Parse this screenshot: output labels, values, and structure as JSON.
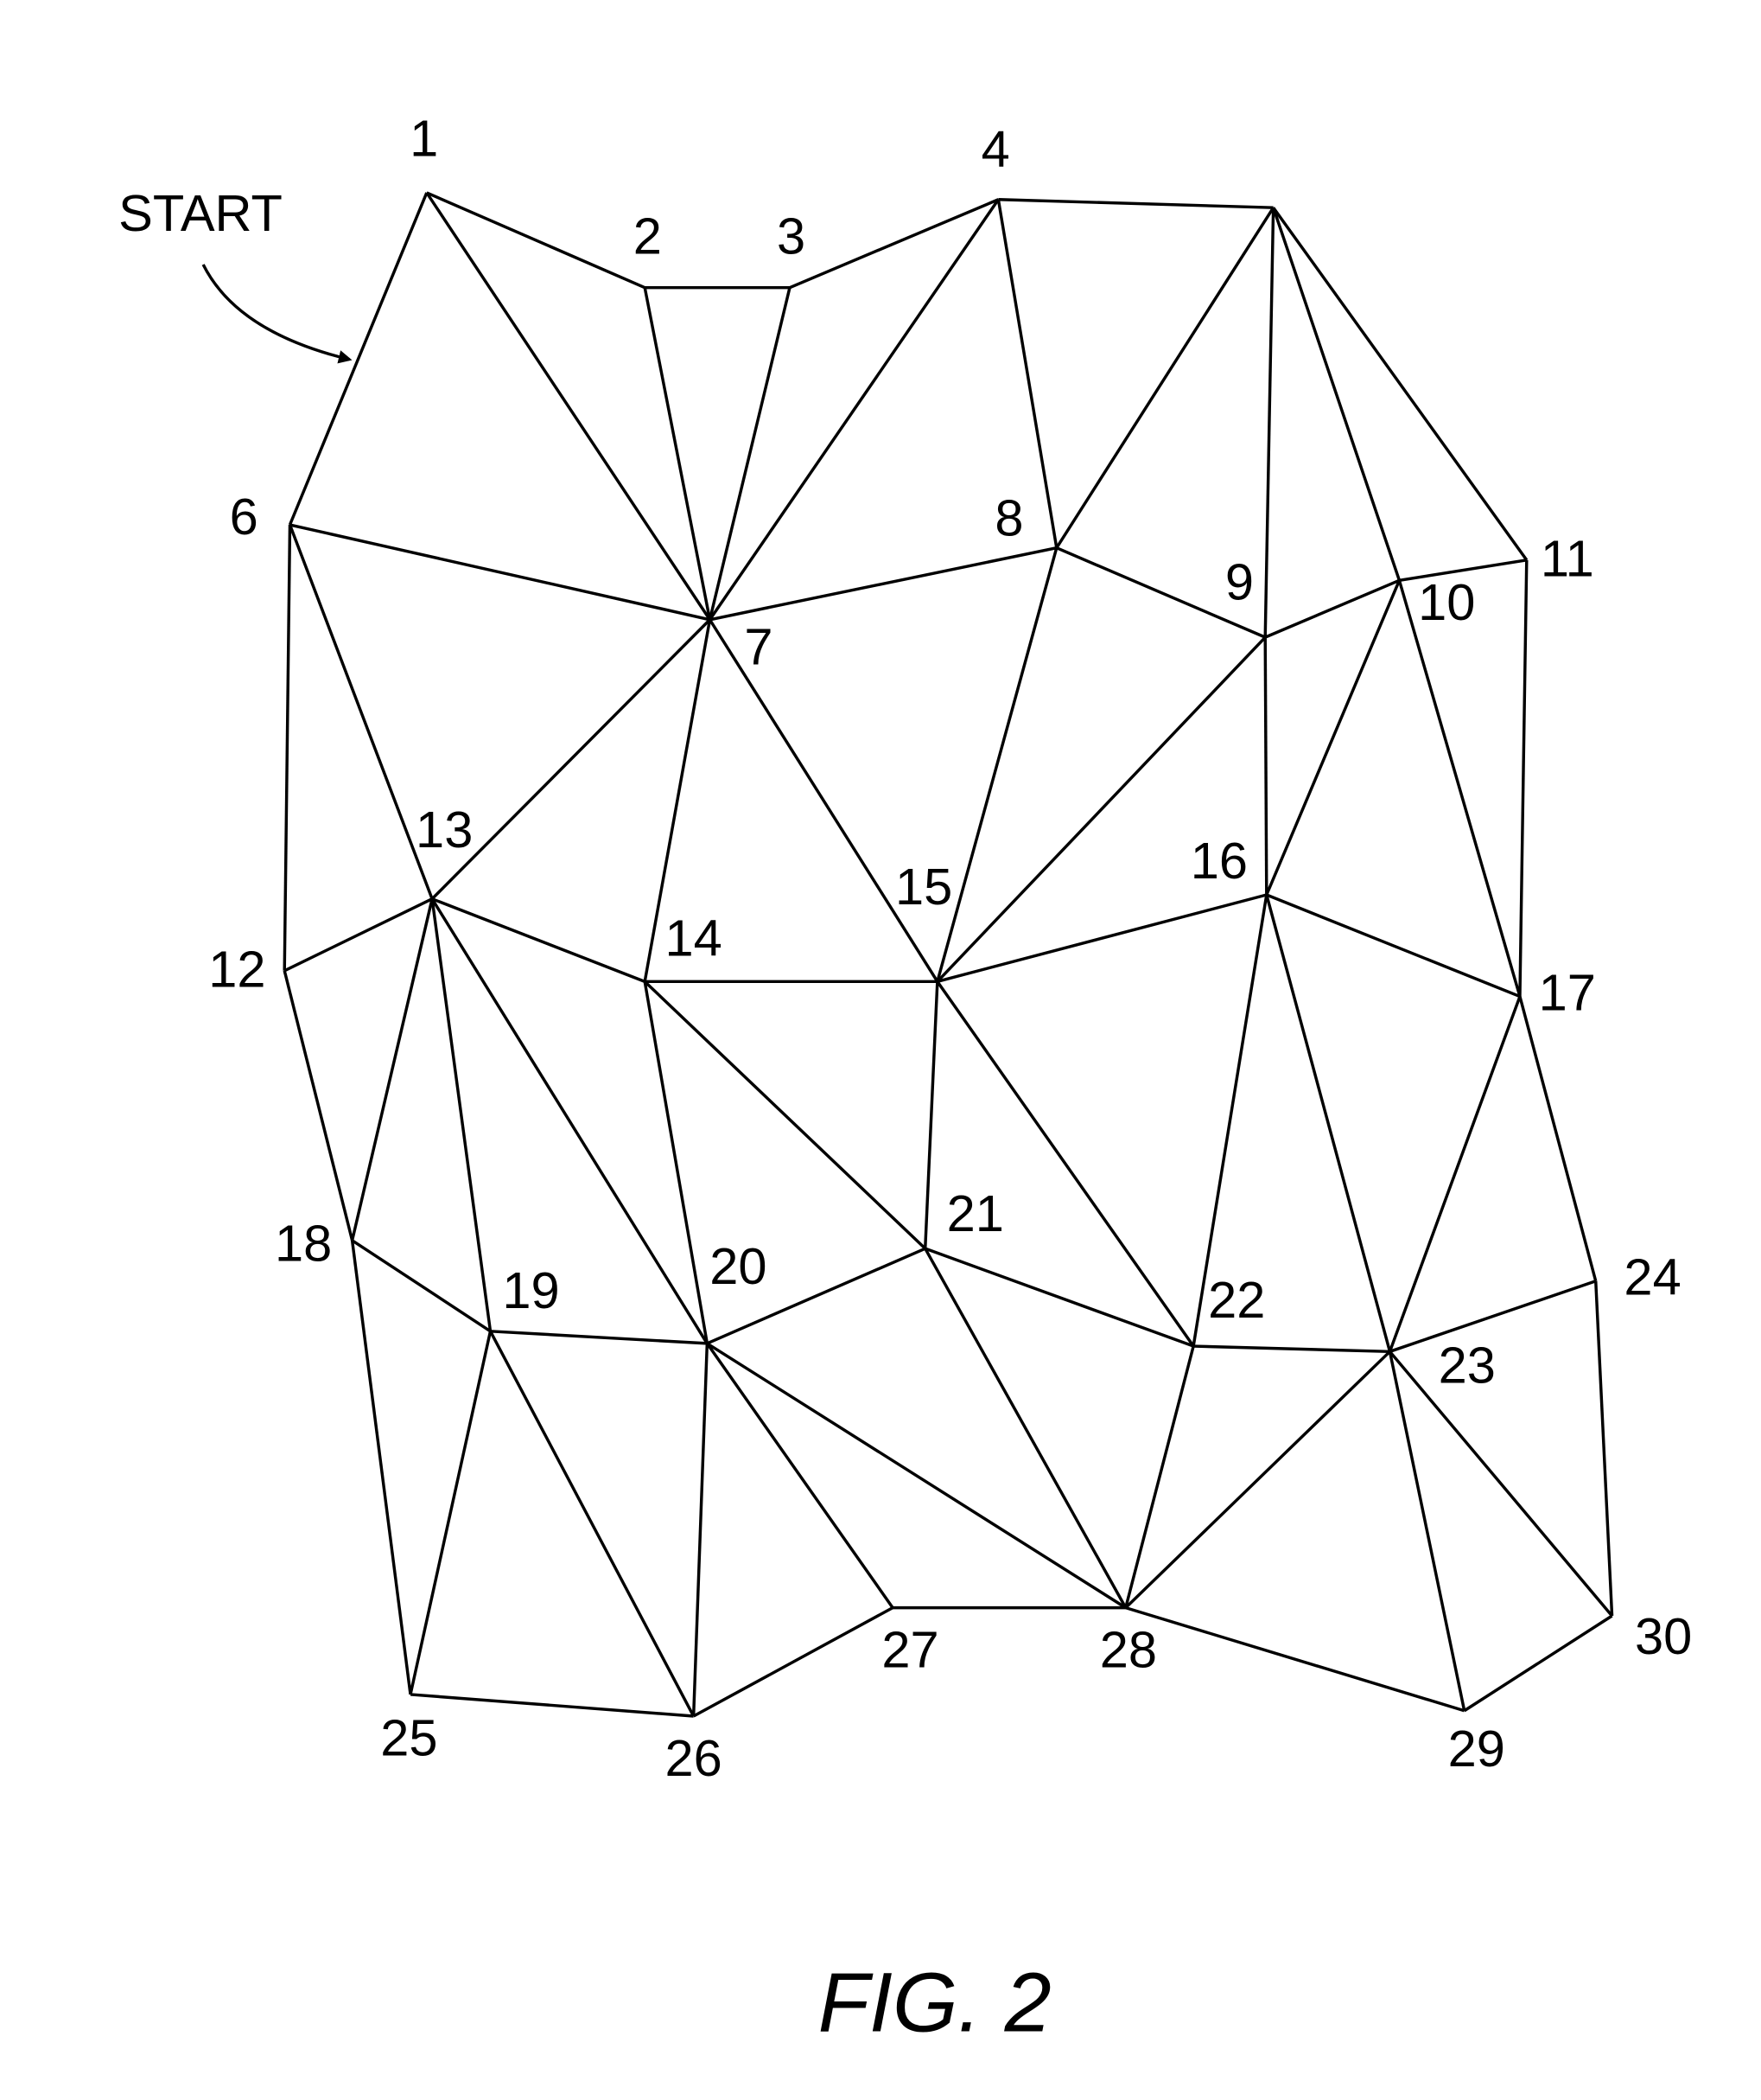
{
  "start_label": "START",
  "figure_caption": "FIG. 2",
  "vertex_labels": {
    "1": "1",
    "2": "2",
    "3": "3",
    "4": "4",
    "6": "6",
    "7": "7",
    "8": "8",
    "9": "9",
    "10": "10",
    "11": "11",
    "12": "12",
    "13": "13",
    "14": "14",
    "15": "15",
    "16": "16",
    "17": "17",
    "18": "18",
    "19": "19",
    "20": "20",
    "21": "21",
    "22": "22",
    "23": "23",
    "24": "24",
    "25": "25",
    "26": "26",
    "27": "27",
    "28": "28",
    "29": "29",
    "30": "30"
  },
  "edges": [
    [
      1,
      2
    ],
    [
      2,
      3
    ],
    [
      3,
      4
    ],
    [
      4,
      5
    ],
    [
      5,
      11
    ],
    [
      1,
      6
    ],
    [
      1,
      7
    ],
    [
      2,
      7
    ],
    [
      3,
      7
    ],
    [
      4,
      7
    ],
    [
      4,
      8
    ],
    [
      5,
      8
    ],
    [
      5,
      9
    ],
    [
      5,
      10
    ],
    [
      6,
      7
    ],
    [
      6,
      13
    ],
    [
      6,
      12
    ],
    [
      7,
      8
    ],
    [
      7,
      13
    ],
    [
      7,
      14
    ],
    [
      7,
      15
    ],
    [
      8,
      9
    ],
    [
      8,
      15
    ],
    [
      9,
      10
    ],
    [
      9,
      15
    ],
    [
      9,
      16
    ],
    [
      10,
      11
    ],
    [
      10,
      16
    ],
    [
      10,
      17
    ],
    [
      11,
      17
    ],
    [
      12,
      13
    ],
    [
      12,
      18
    ],
    [
      13,
      14
    ],
    [
      13,
      18
    ],
    [
      13,
      19
    ],
    [
      13,
      20
    ],
    [
      14,
      15
    ],
    [
      14,
      20
    ],
    [
      14,
      21
    ],
    [
      15,
      16
    ],
    [
      15,
      21
    ],
    [
      15,
      22
    ],
    [
      16,
      17
    ],
    [
      16,
      22
    ],
    [
      16,
      23
    ],
    [
      17,
      23
    ],
    [
      17,
      24
    ],
    [
      18,
      19
    ],
    [
      18,
      25
    ],
    [
      19,
      20
    ],
    [
      19,
      25
    ],
    [
      19,
      26
    ],
    [
      20,
      21
    ],
    [
      20,
      26
    ],
    [
      20,
      27
    ],
    [
      20,
      28
    ],
    [
      21,
      22
    ],
    [
      21,
      28
    ],
    [
      22,
      23
    ],
    [
      22,
      28
    ],
    [
      23,
      24
    ],
    [
      23,
      28
    ],
    [
      23,
      29
    ],
    [
      23,
      30
    ],
    [
      24,
      30
    ],
    [
      25,
      26
    ],
    [
      26,
      27
    ],
    [
      27,
      28
    ],
    [
      28,
      29
    ],
    [
      29,
      30
    ]
  ]
}
